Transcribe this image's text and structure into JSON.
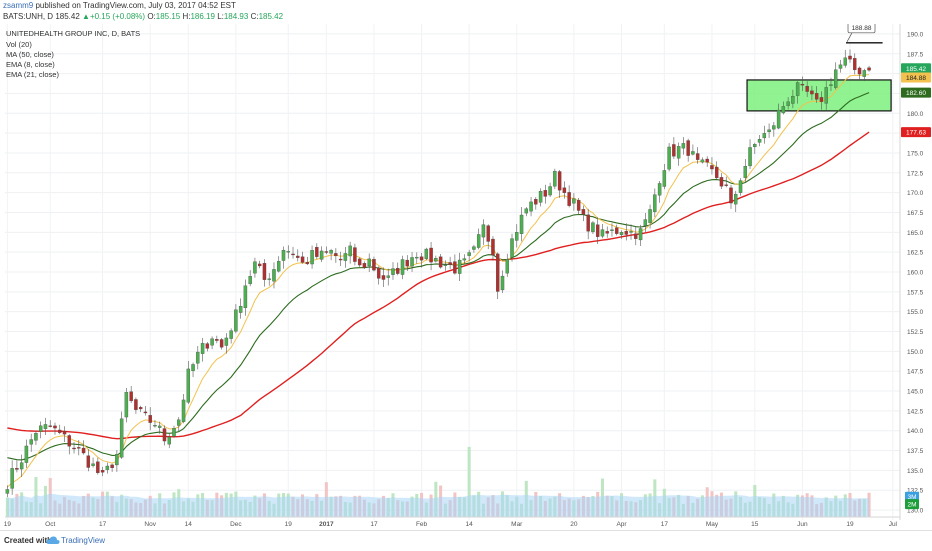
{
  "header": {
    "author": "zsamm9",
    "published": "published on TradingView.com, July 03, 2017 04:52 EST",
    "symbol": "BATS:UNH, D",
    "last": "185.42",
    "change": "+0.15 (+0.08%)",
    "o_label": "O:",
    "o": "185.15",
    "h_label": "H:",
    "h": "186.19",
    "l_label": "L:",
    "l": "184.93",
    "c_label": "C:",
    "c": "185.42"
  },
  "legend": {
    "title": "UNITEDHEALTH GROUP INC, D, BATS",
    "items": [
      "Vol (20)",
      "MA (50, close)",
      "EMA (8, close)",
      "EMA (21, close)"
    ]
  },
  "footer": {
    "created": "Created with",
    "brand": "TradingView"
  },
  "colors": {
    "up": "#4caf50",
    "down": "#b03030",
    "ema8": "#f2c14e",
    "ema21": "#2e6b1f",
    "ma50": "#e02020",
    "zone_fill": "#7cf07c",
    "zone_border": "#111111",
    "vol_area": "#a9d6f5",
    "vol_up": "#bfe6c3",
    "vol_down": "#f2c4c4"
  },
  "chart_data": {
    "type": "candlestick",
    "title": "UNITEDHEALTH GROUP INC, D, BATS",
    "ylim": [
      128.75,
      191.25
    ],
    "yticks": [
      130.0,
      132.5,
      135.0,
      137.5,
      140.0,
      142.5,
      145.0,
      147.5,
      150.0,
      152.5,
      155.0,
      157.5,
      160.0,
      162.5,
      165.0,
      167.5,
      170.0,
      172.5,
      175.0,
      177.5,
      180.0,
      182.5,
      185.0,
      187.5,
      190.0
    ],
    "x_tick_labels": [
      "19",
      "Oct",
      "17",
      "Nov",
      "14",
      "Dec",
      "19",
      "2017",
      "17",
      "Feb",
      "14",
      "Mar",
      "20",
      "Apr",
      "17",
      "May",
      "15",
      "Jun",
      "19",
      "Jul"
    ],
    "x_tick_bar_index": [
      0,
      9,
      20,
      30,
      38,
      48,
      59,
      67,
      77,
      87,
      97,
      107,
      119,
      129,
      138,
      148,
      157,
      167,
      177,
      186
    ],
    "price_labels": [
      {
        "value": "185.42",
        "role": "last close",
        "color": "#26a65b"
      },
      {
        "value": "184.88",
        "role": "EMA 8",
        "color": "#f2c14e"
      },
      {
        "value": "182.60",
        "role": "EMA 21",
        "color": "#2e6b1f"
      },
      {
        "value": "177.63",
        "role": "MA 50",
        "color": "#e02020"
      }
    ],
    "volume_labels": [
      "3M",
      "2M"
    ],
    "annotation": {
      "text": "188.88",
      "price": 188.88
    },
    "zone": {
      "from_bar": 156,
      "to_bar": 185,
      "low": 180.3,
      "high": 184.2
    },
    "anchors": [
      [
        0,
        133.5
      ],
      [
        3,
        136.5
      ],
      [
        6,
        140.0
      ],
      [
        9,
        140.5
      ],
      [
        12,
        139.0
      ],
      [
        15,
        137.5
      ],
      [
        18,
        135.5
      ],
      [
        20,
        134.0
      ],
      [
        23,
        137.0
      ],
      [
        25,
        144.5
      ],
      [
        27,
        142.5
      ],
      [
        29,
        141.5
      ],
      [
        31,
        141.0
      ],
      [
        33,
        139.0
      ],
      [
        36,
        141.5
      ],
      [
        38,
        147.0
      ],
      [
        40,
        149.5
      ],
      [
        43,
        152.0
      ],
      [
        45,
        150.5
      ],
      [
        48,
        154.5
      ],
      [
        50,
        158.5
      ],
      [
        52,
        161.0
      ],
      [
        54,
        159.0
      ],
      [
        56,
        160.5
      ],
      [
        58,
        163.0
      ],
      [
        60,
        162.5
      ],
      [
        62,
        161.0
      ],
      [
        64,
        162.0
      ],
      [
        66,
        162.0
      ],
      [
        68,
        162.5
      ],
      [
        70,
        161.5
      ],
      [
        72,
        162.5
      ],
      [
        74,
        160.5
      ],
      [
        76,
        161.5
      ],
      [
        78,
        159.5
      ],
      [
        80,
        159.0
      ],
      [
        82,
        160.5
      ],
      [
        84,
        161.5
      ],
      [
        86,
        162.5
      ],
      [
        88,
        162.0
      ],
      [
        90,
        161.5
      ],
      [
        92,
        161.0
      ],
      [
        94,
        160.5
      ],
      [
        96,
        161.0
      ],
      [
        98,
        162.5
      ],
      [
        100,
        165.5
      ],
      [
        102,
        163.0
      ],
      [
        103,
        158.0
      ],
      [
        105,
        162.5
      ],
      [
        107,
        165.5
      ],
      [
        109,
        168.0
      ],
      [
        111,
        169.0
      ],
      [
        113,
        170.0
      ],
      [
        115,
        172.0
      ],
      [
        117,
        170.0
      ],
      [
        119,
        168.5
      ],
      [
        121,
        166.5
      ],
      [
        123,
        165.5
      ],
      [
        125,
        164.5
      ],
      [
        127,
        165.0
      ],
      [
        129,
        165.5
      ],
      [
        131,
        165.0
      ],
      [
        133,
        165.0
      ],
      [
        135,
        167.5
      ],
      [
        137,
        172.0
      ],
      [
        139,
        175.0
      ],
      [
        141,
        175.5
      ],
      [
        143,
        175.5
      ],
      [
        145,
        173.5
      ],
      [
        147,
        173.0
      ],
      [
        149,
        172.0
      ],
      [
        151,
        170.5
      ],
      [
        152,
        168.0
      ],
      [
        154,
        172.0
      ],
      [
        156,
        175.0
      ],
      [
        158,
        177.0
      ],
      [
        160,
        177.5
      ],
      [
        162,
        180.0
      ],
      [
        164,
        182.0
      ],
      [
        166,
        183.0
      ],
      [
        168,
        182.5
      ],
      [
        170,
        181.0
      ],
      [
        172,
        183.0
      ],
      [
        174,
        185.5
      ],
      [
        176,
        186.5
      ],
      [
        178,
        185.5
      ],
      [
        180,
        185.5
      ],
      [
        181,
        185.42
      ]
    ],
    "indicators": [
      {
        "name": "EMA (8, close)",
        "color": "#f2c14e",
        "last": 184.88
      },
      {
        "name": "EMA (21, close)",
        "color": "#2e6b1f",
        "last": 182.6
      },
      {
        "name": "MA (50, close)",
        "color": "#e02020",
        "last": 177.63
      },
      {
        "name": "Vol (20)",
        "color": "#a9d6f5"
      }
    ]
  }
}
